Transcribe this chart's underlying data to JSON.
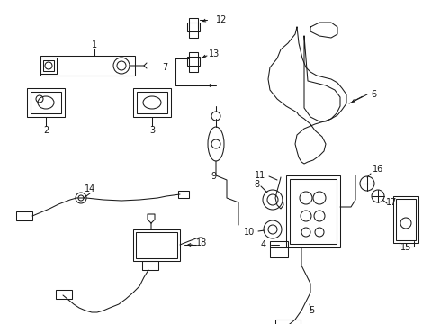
{
  "bg_color": "#ffffff",
  "line_color": "#1a1a1a",
  "lw": 0.75
}
